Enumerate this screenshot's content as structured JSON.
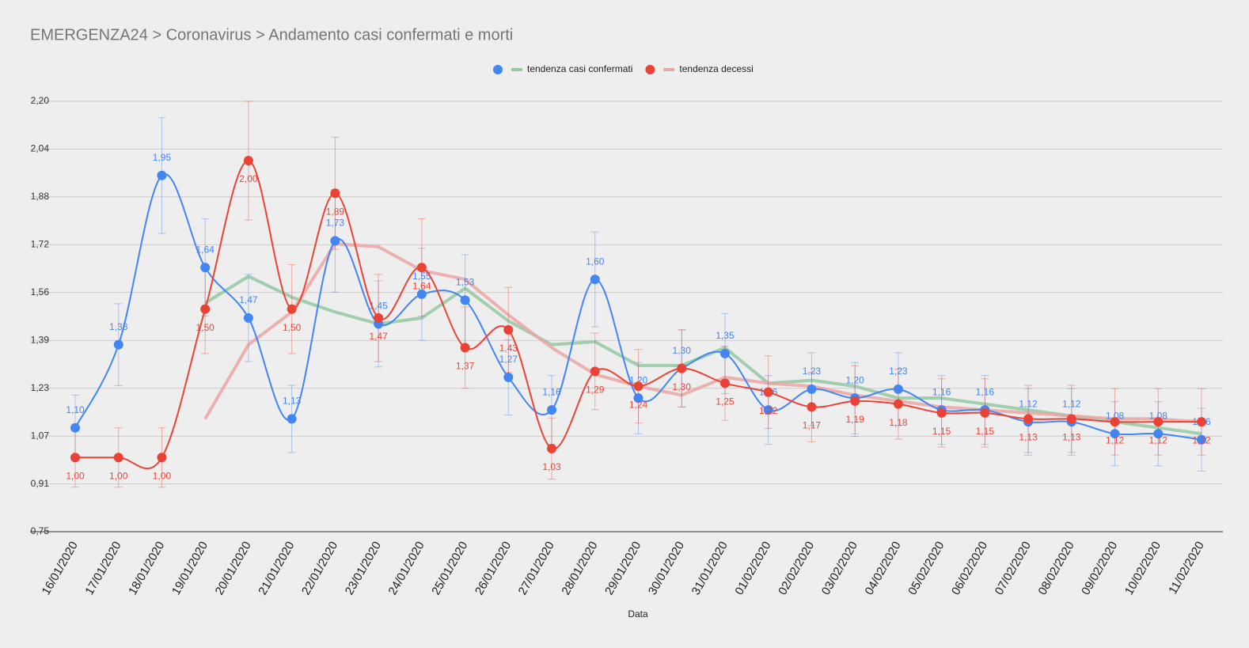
{
  "chart_data": {
    "type": "line",
    "title": "EMERGENZA24 > Coronavirus > Andamento casi confermati e morti",
    "x_label": "Data",
    "categories": [
      "16/01/2020",
      "17/01/2020",
      "18/01/2020",
      "19/01/2020",
      "20/01/2020",
      "21/01/2020",
      "22/01/2020",
      "23/01/2020",
      "24/01/2020",
      "25/01/2020",
      "26/01/2020",
      "27/01/2020",
      "28/01/2020",
      "29/01/2020",
      "30/01/2020",
      "31/01/2020",
      "01/02/2020",
      "02/02/2020",
      "03/02/2020",
      "04/02/2020",
      "05/02/2020",
      "06/02/2020",
      "07/02/2020",
      "08/02/2020",
      "09/02/2020",
      "10/02/2020",
      "11/02/2020"
    ],
    "ylim": [
      0.75,
      2.2
    ],
    "yticks": [
      {
        "value": 0.75,
        "label": "0,75"
      },
      {
        "value": 0.911,
        "label": "0,91"
      },
      {
        "value": 1.072,
        "label": "1,07"
      },
      {
        "value": 1.233,
        "label": "1,23"
      },
      {
        "value": 1.394,
        "label": "1,39"
      },
      {
        "value": 1.556,
        "label": "1,56"
      },
      {
        "value": 1.717,
        "label": "1,72"
      },
      {
        "value": 1.878,
        "label": "1,88"
      },
      {
        "value": 2.039,
        "label": "2,04"
      },
      {
        "value": 2.2,
        "label": "2,20"
      }
    ],
    "grid": true,
    "legend": "top",
    "error_percent": 10,
    "series": [
      {
        "color": "#4285f4",
        "style": "points",
        "values": [
          1.1,
          1.38,
          1.95,
          1.64,
          1.47,
          1.13,
          1.73,
          1.45,
          1.55,
          1.53,
          1.27,
          1.16,
          1.6,
          1.2,
          1.3,
          1.35,
          1.16,
          1.23,
          1.2,
          1.23,
          1.16,
          1.16,
          1.12,
          1.12,
          1.08,
          1.08,
          1.06
        ],
        "value_labels": [
          "1,10",
          "1,38",
          "1,95",
          "1,64",
          "1,47",
          "1,13",
          "1,73",
          "1,45",
          "1,55",
          "1,53",
          "1,27",
          "1,16",
          "1,60",
          "1,20",
          "1,30",
          "1,35",
          "1,16",
          "1,23",
          "1,20",
          "1,23",
          "1,16",
          "1,16",
          "1,12",
          "1,12",
          "1,08",
          "1,08",
          "1,06"
        ]
      },
      {
        "name": "tendenza casi confermati",
        "color": "#93c8a0",
        "style": "trend",
        "values": [
          null,
          null,
          null,
          1.52,
          1.61,
          1.54,
          1.49,
          1.45,
          1.47,
          1.57,
          1.46,
          1.38,
          1.39,
          1.31,
          1.31,
          1.37,
          1.25,
          1.26,
          1.24,
          1.2,
          1.2,
          1.18,
          1.16,
          1.14,
          1.12,
          1.1,
          1.08
        ]
      },
      {
        "color": "#ea4335",
        "style": "points",
        "values": [
          1.0,
          1.0,
          1.0,
          1.5,
          2.0,
          1.5,
          1.89,
          1.47,
          1.64,
          1.37,
          1.43,
          1.03,
          1.29,
          1.24,
          1.3,
          1.25,
          1.22,
          1.17,
          1.19,
          1.18,
          1.15,
          1.15,
          1.13,
          1.13,
          1.12,
          1.12,
          1.12
        ],
        "value_labels": [
          "1,00",
          "1,00",
          "1,00",
          "1,50",
          "2,00",
          "1,50",
          "1,89",
          "1,47",
          "1,64",
          "1,37",
          "1,43",
          "1,03",
          "1,29",
          "1,24",
          "1,30",
          "1,25",
          "1,22",
          "1,17",
          "1,19",
          "1,18",
          "1,15",
          "1,15",
          "1,13",
          "1,13",
          "1,12",
          "1,12",
          "1,12"
        ]
      },
      {
        "name": "tendenza decessi",
        "color": "#eba5a3",
        "style": "trend",
        "values": [
          null,
          null,
          null,
          1.13,
          1.38,
          1.49,
          1.72,
          1.71,
          1.63,
          1.6,
          1.48,
          1.37,
          1.28,
          1.24,
          1.21,
          1.27,
          1.25,
          1.24,
          1.21,
          1.19,
          1.17,
          1.16,
          1.15,
          1.14,
          1.13,
          1.13,
          1.12
        ]
      }
    ]
  }
}
